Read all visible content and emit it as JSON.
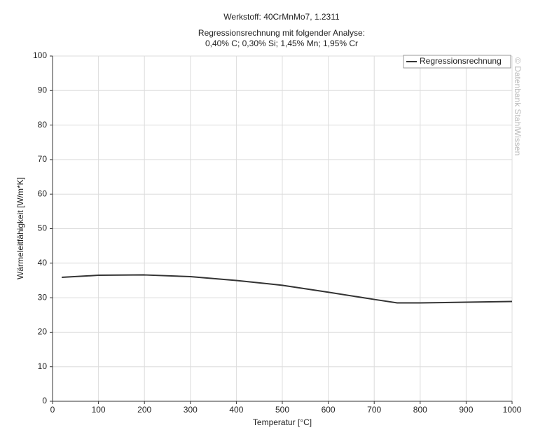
{
  "chart_data": {
    "type": "line",
    "title": "Werkstoff: 40CrMnMo7, 1.2311",
    "subtitle": [
      "Regressionsrechnung mit folgender Analyse:",
      "0,40% C; 0,30% Si; 1,45% Mn; 1,95% Cr"
    ],
    "x_label": "Temperatur [°C]",
    "y_label": "Wärmeleitfähigkeit [W/m*K]",
    "annotation": "© Datenbank StahlWissen",
    "x": [
      20,
      100,
      200,
      300,
      400,
      500,
      600,
      700,
      750,
      800,
      900,
      1000
    ],
    "series": [
      {
        "name": "Regressionsrechnung",
        "color": "#333333",
        "values": [
          35.9,
          36.5,
          36.6,
          36.1,
          35.0,
          33.6,
          31.6,
          29.5,
          28.5,
          28.5,
          28.7,
          28.9
        ]
      }
    ],
    "xlim": [
      0,
      1000
    ],
    "xticks": [
      0,
      100,
      200,
      300,
      400,
      500,
      600,
      700,
      800,
      900,
      1000
    ],
    "ylim": [
      0,
      100
    ],
    "yticks": [
      0,
      10,
      20,
      30,
      40,
      50,
      60,
      70,
      80,
      90,
      100
    ],
    "grid": true,
    "legend": "top-right"
  }
}
